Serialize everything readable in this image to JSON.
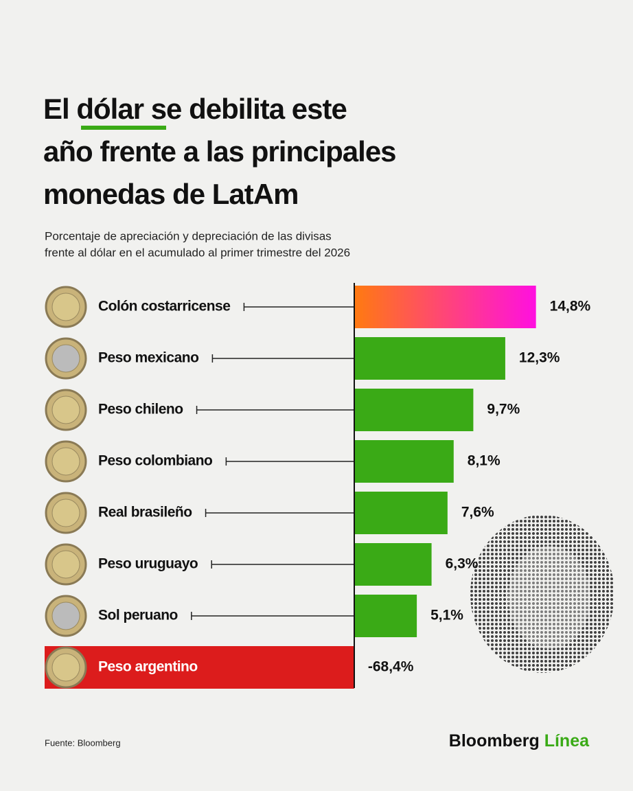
{
  "chart_data": {
    "type": "hbar",
    "title": [
      "El dólar se debilita este",
      "año frente a las principales",
      "monedas de LatAm"
    ],
    "subtitle": [
      "Porcentaje de apreciación y depreciación de las divisas",
      "frente al dólar en el acumulado al primer trimestre del 2026"
    ],
    "categories": [
      "Colón costarricense",
      "Peso mexicano",
      "Peso chileno",
      "Peso colombiano",
      "Real brasileño",
      "Peso uruguayo",
      "Sol peruano",
      "Peso argentino"
    ],
    "values": [
      14.8,
      12.3,
      9.7,
      8.1,
      7.6,
      6.3,
      5.1,
      -68.4
    ],
    "value_labels": [
      "14,8%",
      "12,3%",
      "9,7%",
      "8,1%",
      "7,6%",
      "6,3%",
      "5,1%",
      "-68,4%"
    ],
    "colors": [
      [
        "#ff7a10",
        "#ff10e0"
      ],
      "#3aaa16",
      "#3aaa16",
      "#3aaa16",
      "#3aaa16",
      "#3aaa16",
      "#3aaa16",
      "#dc1c1c"
    ],
    "xlim": [
      -25.2,
      22.7
    ],
    "source": "Fuente: Bloomberg",
    "brand": {
      "name": "Bloomberg",
      "suffix": "Línea"
    }
  }
}
